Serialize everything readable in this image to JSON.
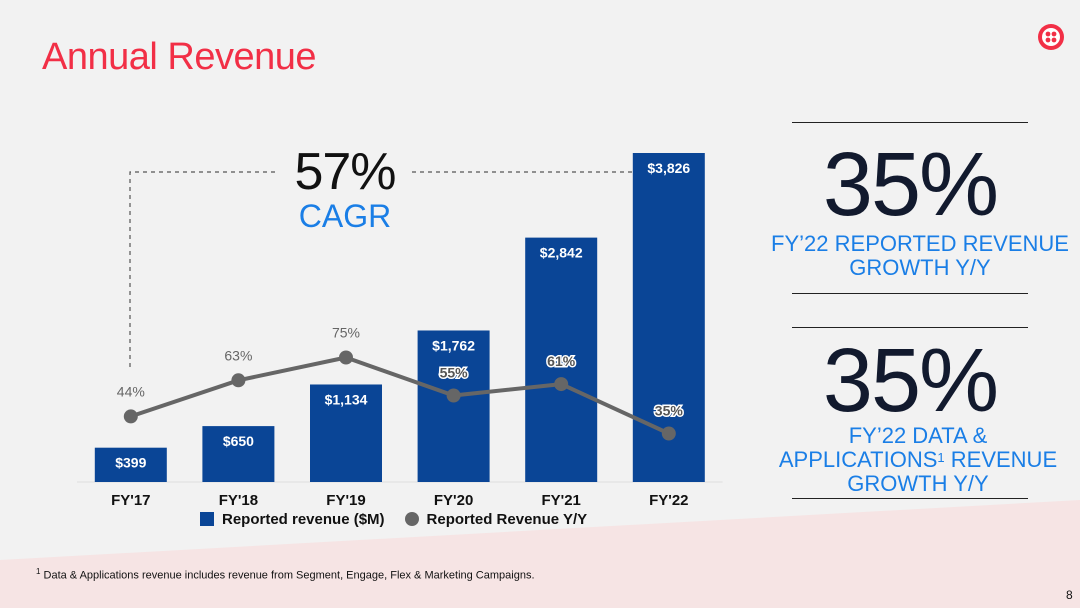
{
  "slide": {
    "title": "Annual Revenue",
    "page_number": "8"
  },
  "colors": {
    "title_red": "#f22f46",
    "bar_blue": "#0a4596",
    "line_gray": "#666666",
    "accent_blue": "#1a7ee6"
  },
  "cagr": {
    "value": "57%",
    "label": "CAGR"
  },
  "kpis": [
    {
      "value": "35%",
      "description": "FY’22 REPORTED REVENUE GROWTH Y/Y"
    },
    {
      "value": "35%",
      "description_prefix": "FY’22 DATA & APPLICATIONS",
      "footnote_marker": "1",
      "description_suffix": " REVENUE GROWTH Y/Y"
    }
  ],
  "legend": {
    "bars": "Reported revenue ($M)",
    "line": "Reported Revenue Y/Y"
  },
  "footnote": {
    "marker": "1",
    "text": " Data & Applications revenue includes revenue from Segment, Engage, Flex & Marketing Campaigns."
  },
  "chart_data": {
    "type": "bar",
    "title": "",
    "xlabel": "",
    "ylabel": "",
    "categories": [
      "FY'17",
      "FY'18",
      "FY'19",
      "FY'20",
      "FY'21",
      "FY'22"
    ],
    "series": [
      {
        "name": "Reported revenue ($M)",
        "type": "bar",
        "values": [
          399,
          650,
          1134,
          1762,
          2842,
          3826
        ],
        "labels": [
          "$399",
          "$650",
          "$1,134",
          "$1,762",
          "$2,842",
          "$3,826"
        ]
      },
      {
        "name": "Reported Revenue Y/Y",
        "type": "line",
        "values": [
          44,
          63,
          75,
          55,
          61,
          35
        ],
        "labels": [
          "44%",
          "63%",
          "75%",
          "55%",
          "61%",
          "35%"
        ]
      }
    ],
    "ylim": [
      0,
      3826
    ],
    "ylim_line": [
      0,
      100
    ],
    "grid": false,
    "legend_position": "bottom"
  }
}
